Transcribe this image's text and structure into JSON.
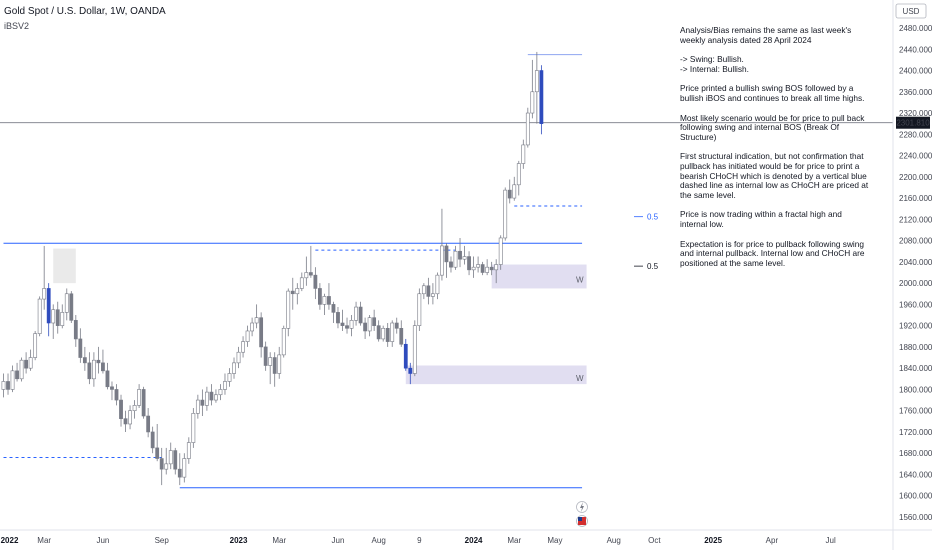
{
  "header": {
    "title": "Gold Spot / U.S. Dollar, 1W, OANDA",
    "indicator": "iBSV2"
  },
  "currency_label": "USD",
  "notes": [
    " Analysis/Bias remains the same as last week's weekly analysis dated 28 April 2024",
    "-> Swing: Bullish.\n-> Internal: Bullish.",
    "Price  printed a bullish swing BOS followed by a bullish iBOS and continues to break all time highs.",
    "Most likely scenario would be for price to pull back following swing and internal BOS (Break Of Structure)",
    "First structural indication, but not confirmation that pullback has initiated would be for price to print a bearish CHoCH which is denoted by a vertical blue dashed line as internal low as CHoCH are priced at the same level.",
    "Price is now trading within a fractal high and internal low.",
    "Expectation is for price to pullback following swing and internal pullback.  Internal low and CHoCH are positioned at the same level."
  ],
  "chart_data": {
    "type": "candlestick",
    "title": "Gold Spot / U.S. Dollar, 1W, OANDA",
    "ylabel": "USD",
    "ylim": [
      1540,
      2500
    ],
    "y_ticks": [
      1560,
      1600,
      1640,
      1680,
      1720,
      1760,
      1800,
      1840,
      1880,
      1920,
      1960,
      2000,
      2040,
      2080,
      2120,
      2160,
      2200,
      2240,
      2280,
      2320,
      2360,
      2400,
      2440,
      2480
    ],
    "y_tick_labels": [
      "1560.000",
      "1600.000",
      "1640.000",
      "1680.000",
      "1720.000",
      "1760.000",
      "1800.000",
      "1840.000",
      "1880.000",
      "1920.000",
      "1960.000",
      "2000.000",
      "2040.000",
      "2080.000",
      "2120.000",
      "2160.000",
      "2200.000",
      "2240.000",
      "2280.000",
      "2320.000",
      "2360.000",
      "2400.000",
      "2440.000",
      "2480.000"
    ],
    "x_ticks": [
      {
        "label": "2022",
        "week": 0,
        "bold": true
      },
      {
        "label": "Mar",
        "week": 9
      },
      {
        "label": "Jun",
        "week": 22
      },
      {
        "label": "Sep",
        "week": 35
      },
      {
        "label": "2023",
        "week": 52,
        "bold": true
      },
      {
        "label": "Mar",
        "week": 61
      },
      {
        "label": "Jun",
        "week": 74
      },
      {
        "label": "Aug",
        "week": 83
      },
      {
        "label": "9",
        "week": 92
      },
      {
        "label": "2024",
        "week": 104,
        "bold": true
      },
      {
        "label": "Mar",
        "week": 113
      },
      {
        "label": "May",
        "week": 122
      },
      {
        "label": "Aug",
        "week": 135
      },
      {
        "label": "Oct",
        "week": 144
      },
      {
        "label": "2025",
        "week": 157,
        "bold": true
      },
      {
        "label": "Apr",
        "week": 170
      },
      {
        "label": "Jul",
        "week": 183
      }
    ],
    "current_price": 2301.81,
    "current_price_label": "2301.810",
    "candles": [
      [
        1800,
        1830,
        1785,
        1815
      ],
      [
        1815,
        1830,
        1790,
        1800
      ],
      [
        1800,
        1845,
        1795,
        1835
      ],
      [
        1835,
        1850,
        1815,
        1820
      ],
      [
        1820,
        1860,
        1815,
        1855
      ],
      [
        1855,
        1870,
        1830,
        1840
      ],
      [
        1840,
        1875,
        1835,
        1860
      ],
      [
        1860,
        1910,
        1855,
        1905
      ],
      [
        1905,
        1975,
        1900,
        1970
      ],
      [
        1970,
        2070,
        1950,
        1990
      ],
      [
        1990,
        2000,
        1900,
        1925
      ],
      [
        1925,
        1960,
        1895,
        1950
      ],
      [
        1950,
        1965,
        1905,
        1920
      ],
      [
        1920,
        1960,
        1915,
        1945
      ],
      [
        1945,
        1990,
        1930,
        1980
      ],
      [
        1980,
        1985,
        1925,
        1930
      ],
      [
        1930,
        1940,
        1880,
        1895
      ],
      [
        1895,
        1915,
        1850,
        1860
      ],
      [
        1860,
        1880,
        1835,
        1850
      ],
      [
        1850,
        1870,
        1810,
        1820
      ],
      [
        1820,
        1870,
        1805,
        1855
      ],
      [
        1855,
        1880,
        1830,
        1850
      ],
      [
        1850,
        1875,
        1830,
        1835
      ],
      [
        1835,
        1850,
        1800,
        1805
      ],
      [
        1805,
        1815,
        1780,
        1800
      ],
      [
        1800,
        1810,
        1770,
        1780
      ],
      [
        1780,
        1790,
        1730,
        1745
      ],
      [
        1745,
        1760,
        1720,
        1735
      ],
      [
        1735,
        1770,
        1725,
        1760
      ],
      [
        1760,
        1780,
        1745,
        1770
      ],
      [
        1770,
        1810,
        1765,
        1800
      ],
      [
        1800,
        1805,
        1745,
        1750
      ],
      [
        1750,
        1765,
        1710,
        1720
      ],
      [
        1720,
        1730,
        1680,
        1690
      ],
      [
        1690,
        1735,
        1665,
        1670
      ],
      [
        1670,
        1690,
        1620,
        1650
      ],
      [
        1650,
        1690,
        1640,
        1660
      ],
      [
        1660,
        1700,
        1650,
        1685
      ],
      [
        1685,
        1690,
        1640,
        1650
      ],
      [
        1650,
        1680,
        1620,
        1635
      ],
      [
        1635,
        1680,
        1625,
        1670
      ],
      [
        1670,
        1710,
        1660,
        1700
      ],
      [
        1700,
        1765,
        1690,
        1755
      ],
      [
        1755,
        1790,
        1745,
        1780
      ],
      [
        1780,
        1800,
        1750,
        1770
      ],
      [
        1770,
        1805,
        1760,
        1795
      ],
      [
        1795,
        1810,
        1770,
        1780
      ],
      [
        1780,
        1800,
        1775,
        1790
      ],
      [
        1790,
        1810,
        1780,
        1800
      ],
      [
        1800,
        1830,
        1790,
        1815
      ],
      [
        1815,
        1840,
        1805,
        1830
      ],
      [
        1830,
        1860,
        1820,
        1850
      ],
      [
        1850,
        1880,
        1840,
        1870
      ],
      [
        1870,
        1900,
        1860,
        1890
      ],
      [
        1890,
        1920,
        1880,
        1910
      ],
      [
        1910,
        1935,
        1900,
        1925
      ],
      [
        1925,
        1960,
        1915,
        1935
      ],
      [
        1935,
        1945,
        1860,
        1880
      ],
      [
        1880,
        1890,
        1835,
        1845
      ],
      [
        1845,
        1870,
        1810,
        1860
      ],
      [
        1860,
        1870,
        1805,
        1830
      ],
      [
        1830,
        1880,
        1820,
        1865
      ],
      [
        1865,
        1920,
        1860,
        1915
      ],
      [
        1915,
        1990,
        1900,
        1985
      ],
      [
        1985,
        2010,
        1950,
        1980
      ],
      [
        1980,
        2000,
        1960,
        1990
      ],
      [
        1990,
        2020,
        1985,
        2010
      ],
      [
        2010,
        2050,
        1995,
        2020
      ],
      [
        2020,
        2070,
        2010,
        2015
      ],
      [
        2015,
        2030,
        1970,
        1990
      ],
      [
        1990,
        2000,
        1950,
        1960
      ],
      [
        1960,
        1980,
        1940,
        1975
      ],
      [
        1975,
        2000,
        1950,
        1960
      ],
      [
        1960,
        1965,
        1925,
        1945
      ],
      [
        1945,
        1955,
        1915,
        1925
      ],
      [
        1925,
        1950,
        1910,
        1920
      ],
      [
        1920,
        1935,
        1905,
        1915
      ],
      [
        1915,
        1940,
        1900,
        1930
      ],
      [
        1930,
        1965,
        1920,
        1955
      ],
      [
        1955,
        1965,
        1920,
        1925
      ],
      [
        1925,
        1935,
        1895,
        1910
      ],
      [
        1910,
        1940,
        1900,
        1935
      ],
      [
        1935,
        1950,
        1910,
        1920
      ],
      [
        1920,
        1930,
        1890,
        1895
      ],
      [
        1895,
        1920,
        1890,
        1915
      ],
      [
        1915,
        1925,
        1880,
        1890
      ],
      [
        1890,
        1930,
        1880,
        1925
      ],
      [
        1925,
        1935,
        1905,
        1915
      ],
      [
        1915,
        1930,
        1880,
        1885
      ],
      [
        1885,
        1895,
        1835,
        1840
      ],
      [
        1840,
        1850,
        1810,
        1830
      ],
      [
        1830,
        1930,
        1825,
        1920
      ],
      [
        1920,
        1990,
        1910,
        1980
      ],
      [
        1980,
        2000,
        1970,
        1995
      ],
      [
        1995,
        2010,
        1960,
        1975
      ],
      [
        1975,
        2000,
        1960,
        1980
      ],
      [
        1980,
        2020,
        1970,
        2015
      ],
      [
        2015,
        2140,
        2005,
        2070
      ],
      [
        2070,
        2075,
        2010,
        2040
      ],
      [
        2040,
        2050,
        2020,
        2030
      ],
      [
        2030,
        2070,
        2025,
        2060
      ],
      [
        2060,
        2085,
        2030,
        2045
      ],
      [
        2045,
        2070,
        2035,
        2050
      ],
      [
        2050,
        2060,
        2015,
        2025
      ],
      [
        2025,
        2050,
        2010,
        2030
      ],
      [
        2030,
        2050,
        2020,
        2035
      ],
      [
        2035,
        2040,
        2015,
        2020
      ],
      [
        2020,
        2045,
        2015,
        2030
      ],
      [
        2030,
        2040,
        2015,
        2025
      ],
      [
        2025,
        2045,
        2000,
        2035
      ],
      [
        2035,
        2090,
        2025,
        2085
      ],
      [
        2085,
        2180,
        2080,
        2175
      ],
      [
        2175,
        2195,
        2150,
        2160
      ],
      [
        2160,
        2200,
        2155,
        2185
      ],
      [
        2185,
        2230,
        2165,
        2225
      ],
      [
        2225,
        2270,
        2215,
        2260
      ],
      [
        2260,
        2330,
        2255,
        2320
      ],
      [
        2320,
        2420,
        2310,
        2360
      ],
      [
        2360,
        2435,
        2300,
        2400
      ],
      [
        2400,
        2410,
        2280,
        2300
      ]
    ],
    "bos_lines": [
      {
        "type": "solid",
        "y": 2075,
        "x_start": 0,
        "x_end": 128
      },
      {
        "type": "dashed",
        "y": 2062,
        "x_start": 69,
        "x_end": 100
      },
      {
        "type": "dashed",
        "y": 1672,
        "x_start": 0,
        "x_end": 35
      },
      {
        "type": "solid",
        "y": 1615,
        "x_start": 39,
        "x_end": 128
      },
      {
        "type": "solid",
        "y": 2430,
        "x_start": 116,
        "x_end": 128
      },
      {
        "type": "dashed",
        "y": 2145,
        "x_start": 113,
        "x_end": 128
      }
    ],
    "zones": [
      {
        "label": "W",
        "y_low": 1990,
        "y_high": 2035,
        "x_start": 108,
        "x_end": 129
      },
      {
        "label": "W",
        "y_low": 1810,
        "y_high": 1845,
        "x_start": 89,
        "x_end": 129
      },
      {
        "label": "",
        "y_low": 2000,
        "y_high": 2065,
        "x_start": 11,
        "x_end": 16
      }
    ],
    "fib_labels": [
      {
        "label": "0.5",
        "y": 2125
      },
      {
        "label": "0.5",
        "y": 2032
      }
    ]
  }
}
